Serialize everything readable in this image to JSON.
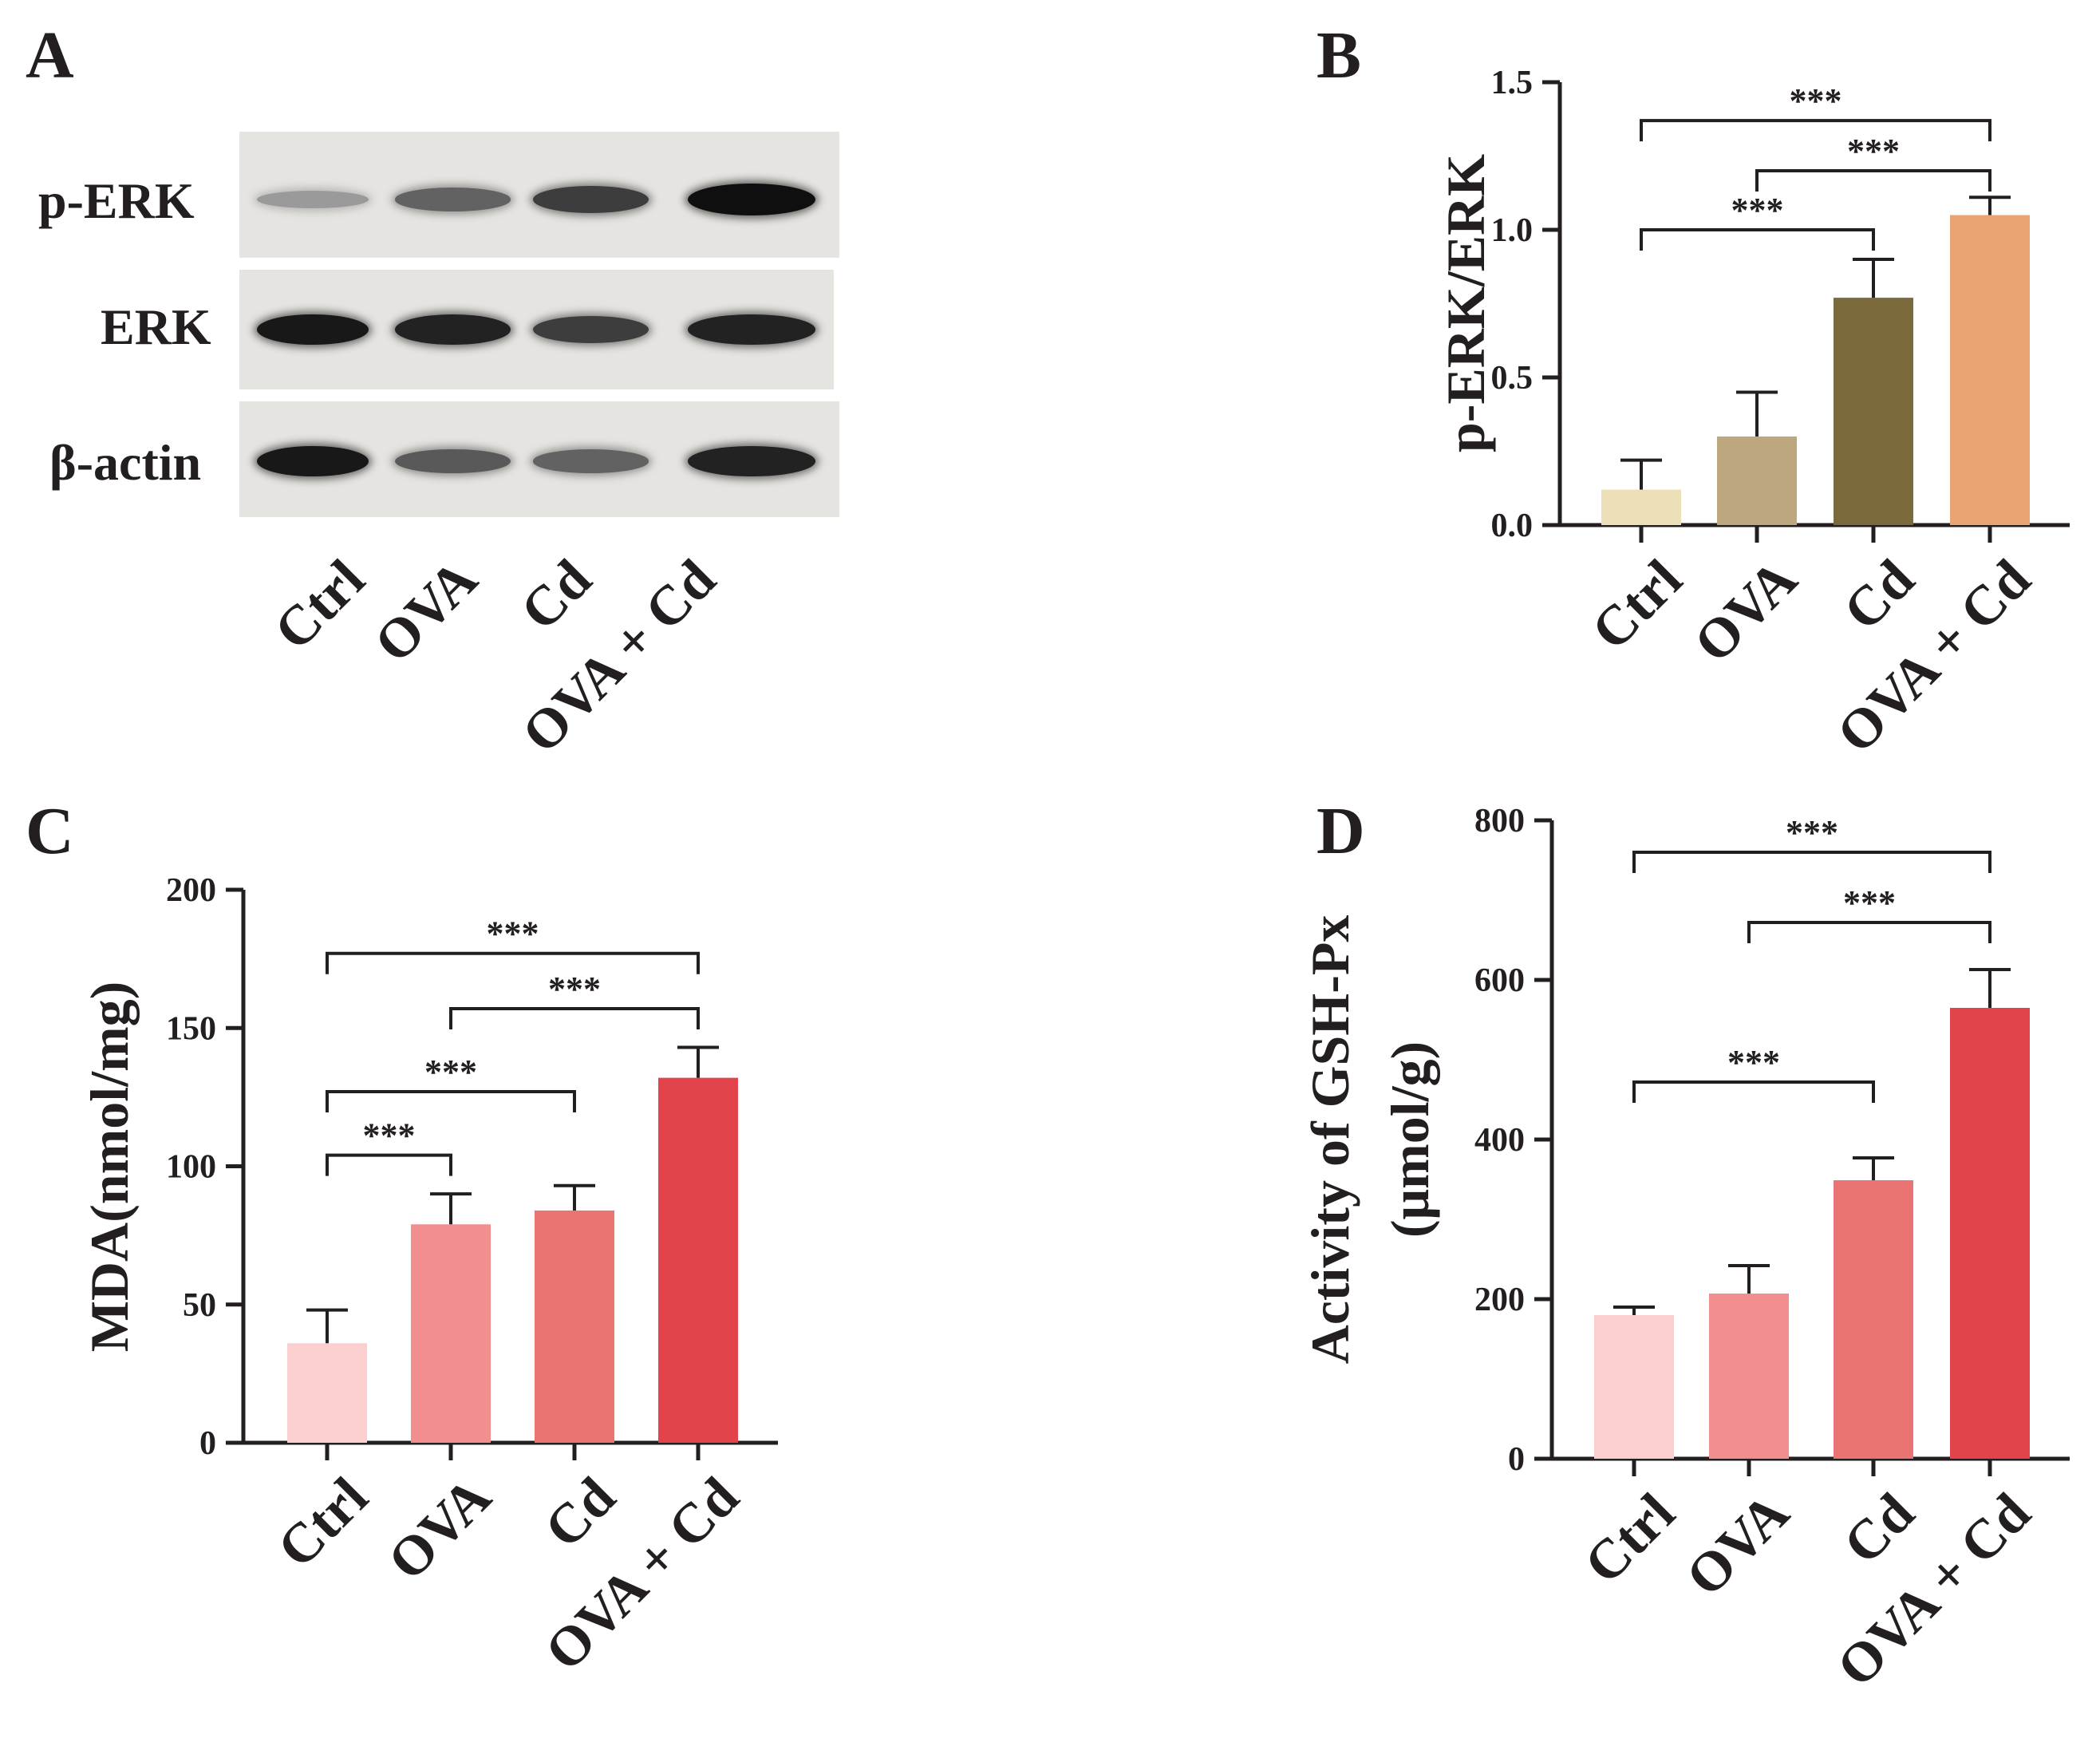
{
  "panel_a": {
    "letter": "A",
    "blot_rows": [
      "p-ERK",
      "ERK",
      "β-actin"
    ],
    "lanes": [
      "Ctrl",
      "OVA",
      "Cd",
      "OVA + Cd"
    ],
    "band_intensity": {
      "p-ERK": [
        0.25,
        0.55,
        0.75,
        1.0
      ],
      "ERK": [
        0.95,
        0.9,
        0.75,
        0.9
      ],
      "β-actin": [
        0.95,
        0.6,
        0.55,
        0.9
      ]
    }
  },
  "chart_data": [
    {
      "id": "B",
      "letter": "B",
      "type": "bar",
      "categories": [
        "Ctrl",
        "OVA",
        "Cd",
        "OVA + Cd"
      ],
      "values": [
        0.12,
        0.3,
        0.77,
        1.05
      ],
      "errors": [
        0.1,
        0.15,
        0.13,
        0.06
      ],
      "colors": [
        "#ede0b9",
        "#bca77e",
        "#7a6a3c",
        "#e8a472"
      ],
      "ylabel": "p-ERK/ERK",
      "ylim": [
        0,
        1.5
      ],
      "yticks": [
        0.0,
        0.5,
        1.0,
        1.5
      ],
      "ytick_labels": [
        "0.0",
        "0.5",
        "1.0",
        "1.5"
      ],
      "significance": [
        {
          "from": 0,
          "to": 3,
          "label": "***",
          "level": 1.37
        },
        {
          "from": 1,
          "to": 3,
          "label": "***",
          "level": 1.2
        },
        {
          "from": 0,
          "to": 2,
          "label": "***",
          "level": 1.0
        }
      ]
    },
    {
      "id": "C",
      "letter": "C",
      "type": "bar",
      "categories": [
        "Ctrl",
        "OVA",
        "Cd",
        "OVA + Cd"
      ],
      "values": [
        36,
        79,
        84,
        132
      ],
      "errors": [
        12,
        11,
        9,
        11
      ],
      "colors": [
        "#fbcfcf",
        "#f28e8e",
        "#ea7373",
        "#e3434a"
      ],
      "ylabel": "MDA(nmol/mg)",
      "ylim": [
        0,
        200
      ],
      "yticks": [
        0,
        50,
        100,
        150,
        200
      ],
      "ytick_labels": [
        "0",
        "50",
        "100",
        "150",
        "200"
      ],
      "significance": [
        {
          "from": 0,
          "to": 3,
          "label": "***",
          "level": 177
        },
        {
          "from": 1,
          "to": 3,
          "label": "***",
          "level": 157
        },
        {
          "from": 0,
          "to": 2,
          "label": "***",
          "level": 127
        },
        {
          "from": 0,
          "to": 1,
          "label": "***",
          "level": 104
        }
      ]
    },
    {
      "id": "D",
      "letter": "D",
      "type": "bar",
      "categories": [
        "Ctrl",
        "OVA",
        "Cd",
        "OVA + Cd"
      ],
      "values": [
        180,
        207,
        349,
        565
      ],
      "errors": [
        10,
        35,
        28,
        48
      ],
      "colors": [
        "#fbcfcf",
        "#f28e8e",
        "#ea7373",
        "#e3434a"
      ],
      "ylabel": "Activity of GSH-Px",
      "ylabel2": "(μmol/g)",
      "ylim": [
        0,
        800
      ],
      "yticks": [
        0,
        200,
        400,
        600,
        800
      ],
      "ytick_labels": [
        "0",
        "200",
        "400",
        "600",
        "800"
      ],
      "significance": [
        {
          "from": 0,
          "to": 3,
          "label": "***",
          "level": 760
        },
        {
          "from": 1,
          "to": 3,
          "label": "***",
          "level": 672
        },
        {
          "from": 0,
          "to": 2,
          "label": "***",
          "level": 472
        }
      ]
    }
  ]
}
